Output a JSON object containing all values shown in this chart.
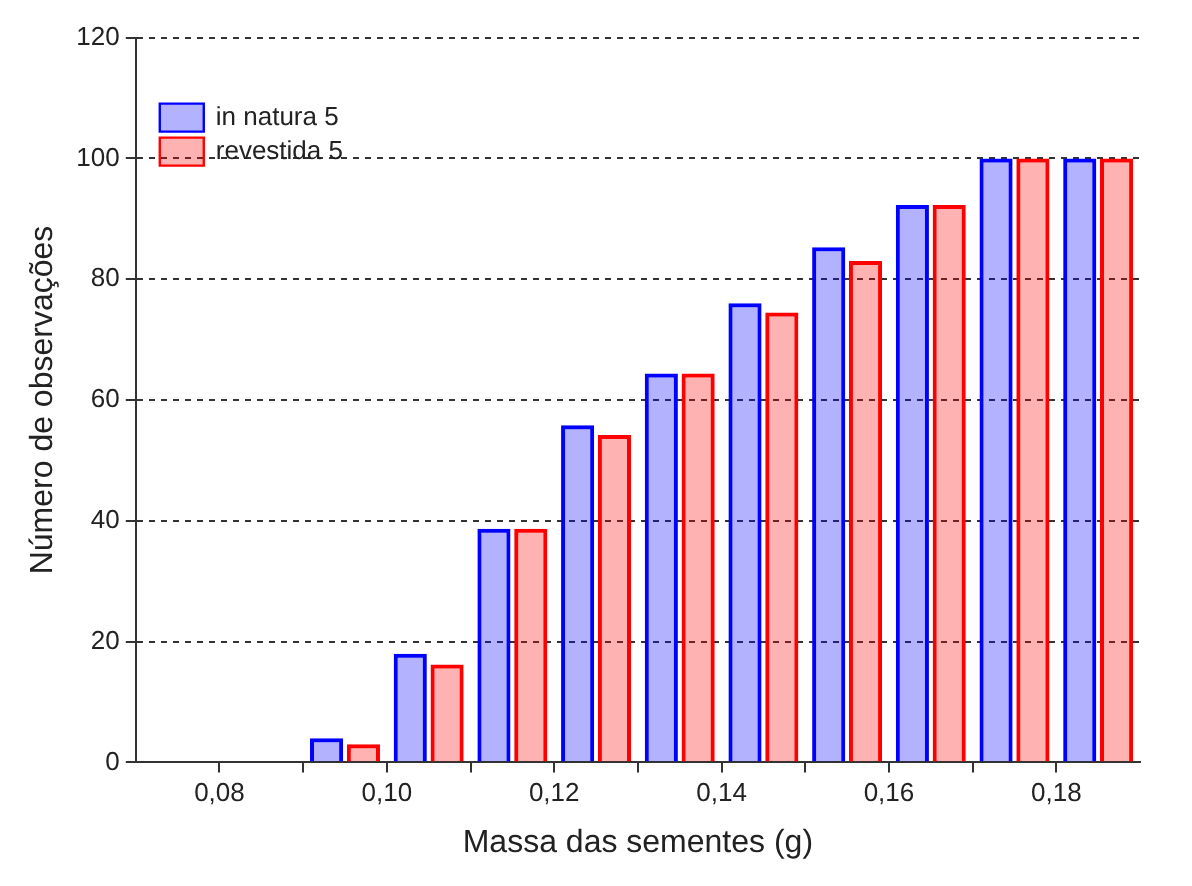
{
  "chart_data": {
    "type": "bar",
    "xlabel": "Massa das sementes (g)",
    "ylabel": "Número de observações",
    "x": [
      0.085,
      0.095,
      0.105,
      0.115,
      0.125,
      0.135,
      0.145,
      0.155,
      0.165,
      0.175,
      0.185
    ],
    "series": [
      {
        "name": "in natura 5",
        "color": "#0000ff",
        "values": [
          0,
          4,
          18,
          38.7,
          55.8,
          64.4,
          76,
          85.3,
          92.3,
          100,
          100
        ]
      },
      {
        "name": "revestida 5",
        "color": "#ff0000",
        "values": [
          0,
          3,
          16.2,
          38.7,
          54.2,
          64.4,
          74.5,
          83,
          92.3,
          100,
          100
        ]
      }
    ],
    "xlim": [
      0.07,
      0.19
    ],
    "xticks": [
      {
        "value": 0.08,
        "label": "0,08"
      },
      {
        "value": 0.09,
        "label": null
      },
      {
        "value": 0.1,
        "label": "0,10"
      },
      {
        "value": 0.11,
        "label": null
      },
      {
        "value": 0.12,
        "label": "0,12"
      },
      {
        "value": 0.13,
        "label": null
      },
      {
        "value": 0.14,
        "label": "0,14"
      },
      {
        "value": 0.15,
        "label": null
      },
      {
        "value": 0.16,
        "label": "0,16"
      },
      {
        "value": 0.17,
        "label": null
      },
      {
        "value": 0.18,
        "label": "0,18"
      }
    ],
    "ylim": [
      0,
      120
    ],
    "yticks": [
      0,
      20,
      40,
      60,
      80,
      100,
      120
    ],
    "grid": "y",
    "legend": "top left"
  }
}
